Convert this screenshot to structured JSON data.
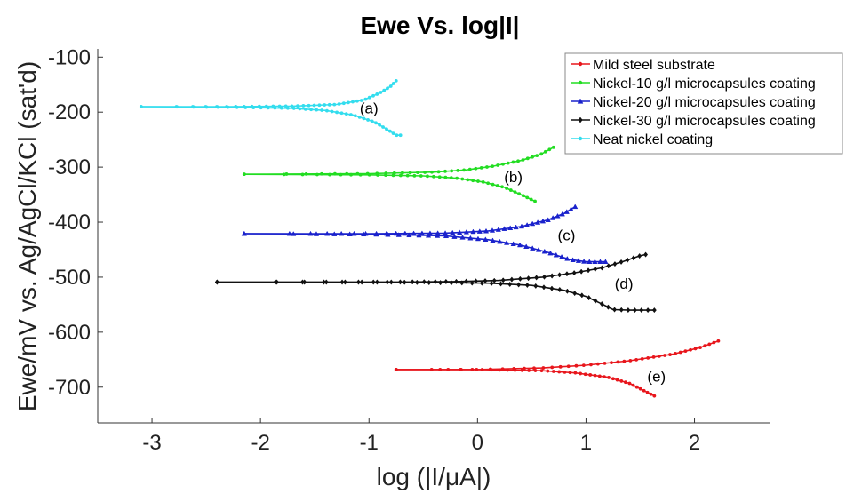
{
  "chart_data": {
    "type": "line",
    "title": "Ewe Vs. log|I|",
    "xlabel": "log (|I/μA|)",
    "ylabel": "Ewe/mV vs. Ag/AgCl/KCl (sat'd)",
    "xlim": [
      -3.5,
      2.7
    ],
    "ylim": [
      -765,
      -85
    ],
    "xticks": [
      -3,
      -2,
      -1,
      0,
      1,
      2
    ],
    "yticks": [
      -100,
      -200,
      -300,
      -400,
      -500,
      -600,
      -700
    ],
    "grid": false,
    "legend_position": "top-right",
    "series": [
      {
        "name": "Mild steel substrate",
        "color": "#e8161c",
        "marker": "circle",
        "annotation": "(e)",
        "annotation_at": [
          1.65,
          -690
        ],
        "anodic": [
          [
            -0.75,
            -668
          ],
          [
            0.0,
            -668
          ],
          [
            0.6,
            -665
          ],
          [
            1.0,
            -660
          ],
          [
            1.4,
            -652
          ],
          [
            1.8,
            -640
          ],
          [
            2.05,
            -628
          ],
          [
            2.22,
            -616
          ]
        ],
        "cathodic": [
          [
            -0.75,
            -668
          ],
          [
            0.0,
            -668
          ],
          [
            0.6,
            -670
          ],
          [
            0.9,
            -674
          ],
          [
            1.2,
            -682
          ],
          [
            1.4,
            -693
          ],
          [
            1.55,
            -708
          ],
          [
            1.63,
            -716
          ]
        ]
      },
      {
        "name": "Nickel-10 g/l microcapsules coating",
        "color": "#22dd22",
        "marker": "circle",
        "annotation": "(b)",
        "annotation_at": [
          0.33,
          -327
        ],
        "anodic": [
          [
            -2.15,
            -313
          ],
          [
            -1.0,
            -312
          ],
          [
            -0.4,
            -309
          ],
          [
            -0.1,
            -305
          ],
          [
            0.15,
            -298
          ],
          [
            0.4,
            -288
          ],
          [
            0.58,
            -277
          ],
          [
            0.7,
            -264
          ]
        ],
        "cathodic": [
          [
            -2.15,
            -313
          ],
          [
            -1.0,
            -314
          ],
          [
            -0.5,
            -316
          ],
          [
            -0.2,
            -320
          ],
          [
            0.05,
            -327
          ],
          [
            0.25,
            -337
          ],
          [
            0.4,
            -350
          ],
          [
            0.53,
            -362
          ]
        ]
      },
      {
        "name": "Nickel-20 g/l microcapsules coating",
        "color": "#1a22cc",
        "marker": "triangle",
        "annotation": "(c)",
        "annotation_at": [
          0.82,
          -433
        ],
        "anodic": [
          [
            -2.15,
            -421
          ],
          [
            -1.0,
            -421
          ],
          [
            -0.3,
            -420
          ],
          [
            0.1,
            -416
          ],
          [
            0.4,
            -408
          ],
          [
            0.65,
            -396
          ],
          [
            0.8,
            -384
          ],
          [
            0.9,
            -372
          ]
        ],
        "cathodic": [
          [
            -2.15,
            -421
          ],
          [
            -1.0,
            -422
          ],
          [
            -0.3,
            -425
          ],
          [
            0.1,
            -432
          ],
          [
            0.4,
            -442
          ],
          [
            0.65,
            -455
          ],
          [
            0.85,
            -468
          ],
          [
            1.0,
            -472
          ],
          [
            1.18,
            -472
          ]
        ]
      },
      {
        "name": "Nickel-30 g/l microcapsules coating",
        "color": "#111111",
        "marker": "diamond",
        "annotation": "(d)",
        "annotation_at": [
          1.35,
          -521
        ],
        "anodic": [
          [
            -2.4,
            -509
          ],
          [
            -0.8,
            -509
          ],
          [
            -0.2,
            -508
          ],
          [
            0.2,
            -506
          ],
          [
            0.6,
            -500
          ],
          [
            0.9,
            -492
          ],
          [
            1.15,
            -483
          ],
          [
            1.35,
            -471
          ],
          [
            1.5,
            -461
          ],
          [
            1.55,
            -459
          ]
        ],
        "cathodic": [
          [
            -2.4,
            -509
          ],
          [
            -0.8,
            -509
          ],
          [
            0.1,
            -511
          ],
          [
            0.5,
            -515
          ],
          [
            0.8,
            -524
          ],
          [
            1.0,
            -535
          ],
          [
            1.15,
            -549
          ],
          [
            1.25,
            -559
          ],
          [
            1.4,
            -560
          ],
          [
            1.63,
            -560
          ]
        ]
      },
      {
        "name": "Neat nickel coating",
        "color": "#33ddee",
        "marker": "circle",
        "annotation": "(a)",
        "annotation_at": [
          -1.0,
          -202
        ],
        "anodic": [
          [
            -3.1,
            -190
          ],
          [
            -2.3,
            -190
          ],
          [
            -1.7,
            -189
          ],
          [
            -1.3,
            -186
          ],
          [
            -1.05,
            -178
          ],
          [
            -0.9,
            -165
          ],
          [
            -0.8,
            -153
          ],
          [
            -0.75,
            -143
          ]
        ],
        "cathodic": [
          [
            -3.1,
            -190
          ],
          [
            -2.3,
            -191
          ],
          [
            -1.7,
            -193
          ],
          [
            -1.4,
            -197
          ],
          [
            -1.15,
            -205
          ],
          [
            -0.95,
            -218
          ],
          [
            -0.82,
            -233
          ],
          [
            -0.75,
            -242
          ],
          [
            -0.71,
            -242
          ]
        ]
      }
    ]
  }
}
